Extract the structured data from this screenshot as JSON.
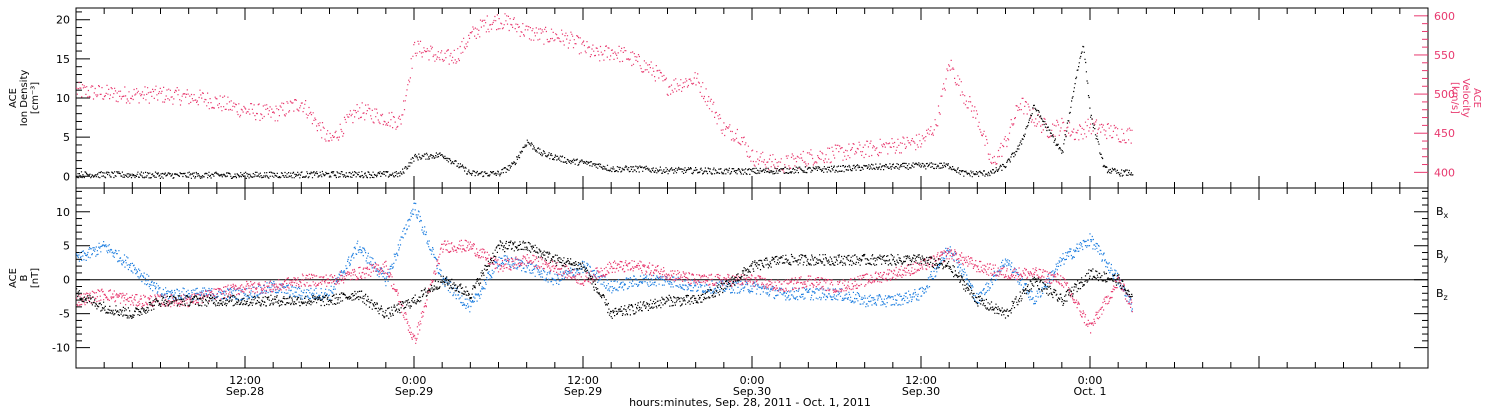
{
  "colors": {
    "black": "#000000",
    "blue": "#1f7fe0",
    "pink": "#e8386e"
  },
  "chart_data": [
    {
      "type": "scatter",
      "panel": "top",
      "ylabel_left": [
        "ACE",
        "Ion Density",
        "[cm⁻³]"
      ],
      "ylabel_right": [
        "ACE",
        "Velocity",
        "[km/s]"
      ],
      "xlim": [
        0,
        96
      ],
      "ylim_left": [
        -1.5,
        21.5
      ],
      "ylim_right": [
        380,
        610
      ],
      "yticks_left": [
        "0",
        "5",
        "10",
        "15",
        "20"
      ],
      "yticks_right": [
        "400",
        "450",
        "500",
        "550",
        "600"
      ],
      "series": [
        {
          "axis": "left",
          "color": "#000000",
          "x": [
            0,
            6,
            12,
            18,
            23,
            24,
            26,
            28,
            30,
            31,
            32,
            33,
            34,
            35,
            36,
            37,
            38,
            40,
            42,
            44,
            46,
            48,
            50,
            52,
            54,
            56,
            58,
            60,
            62,
            63,
            64,
            65,
            66,
            67,
            68,
            69,
            70,
            71,
            71.5,
            72,
            73,
            74,
            75
          ],
          "y": [
            0.3,
            0.2,
            0.2,
            0.3,
            0.3,
            2.5,
            2.8,
            0.4,
            0.4,
            1.5,
            4.5,
            3,
            2.5,
            2,
            1.8,
            1.5,
            1,
            1,
            0.8,
            0.8,
            0.7,
            0.7,
            0.8,
            0.9,
            1,
            1.2,
            1.3,
            1.4,
            1.4,
            0.4,
            0.4,
            0.5,
            1.5,
            4,
            9,
            6,
            3,
            13,
            17,
            8,
            1,
            0.5,
            0.5
          ]
        },
        {
          "axis": "right",
          "color": "#e8386e",
          "x": [
            0,
            3,
            6,
            9,
            12,
            14,
            16,
            18,
            20,
            22,
            23,
            24,
            25,
            26,
            27,
            28,
            29,
            30,
            31,
            32,
            33,
            34,
            35,
            36,
            37,
            38,
            39,
            40,
            41,
            42,
            43,
            44,
            45,
            46,
            47,
            48,
            49,
            50,
            51,
            52,
            54,
            56,
            58,
            60,
            61,
            62,
            63,
            64,
            65,
            66,
            67,
            68,
            69,
            70,
            71,
            72,
            73,
            74,
            75
          ],
          "y": [
            505,
            500,
            500,
            495,
            480,
            475,
            490,
            440,
            480,
            470,
            465,
            560,
            555,
            545,
            550,
            575,
            590,
            595,
            590,
            580,
            575,
            575,
            570,
            560,
            550,
            555,
            550,
            540,
            530,
            510,
            515,
            520,
            490,
            455,
            450,
            420,
            415,
            410,
            415,
            420,
            425,
            430,
            435,
            440,
            460,
            540,
            500,
            470,
            410,
            440,
            490,
            470,
            455,
            460,
            450,
            460,
            455,
            450,
            448
          ]
        }
      ]
    },
    {
      "type": "scatter",
      "panel": "bottom",
      "ylabel_left": [
        "ACE",
        "B",
        "[nT]"
      ],
      "xlim": [
        0,
        96
      ],
      "ylim": [
        -13,
        13.5
      ],
      "yticks": [
        "-10",
        "-5",
        "0",
        "5",
        "10"
      ],
      "xticks": [
        {
          "x": 12,
          "time": "12:00",
          "date": "Sep.28"
        },
        {
          "x": 24,
          "time": "0:00",
          "date": "Sep.29"
        },
        {
          "x": 36,
          "time": "12:00",
          "date": "Sep.29"
        },
        {
          "x": 48,
          "time": "0:00",
          "date": "Sep.30"
        },
        {
          "x": 60,
          "time": "12:00",
          "date": "Sep.30"
        },
        {
          "x": 72,
          "time": "0:00",
          "date": "Oct. 1"
        }
      ],
      "xlabel": "hours:minutes, Sep. 28, 2011 - Oct.  1, 2011",
      "legend": [
        {
          "label": "B",
          "sub": "x",
          "color": "#000000"
        },
        {
          "label": "B",
          "sub": "y",
          "color": "#1f7fe0"
        },
        {
          "label": "B",
          "sub": "z",
          "color": "#e8386e"
        }
      ],
      "series": [
        {
          "name": "Bx",
          "color": "#000000",
          "x": [
            0,
            2,
            4,
            6,
            8,
            10,
            12,
            14,
            16,
            18,
            20,
            22,
            24,
            26,
            28,
            30,
            32,
            34,
            36,
            38,
            40,
            42,
            44,
            46,
            48,
            50,
            52,
            54,
            56,
            58,
            60,
            62,
            64,
            66,
            68,
            70,
            72,
            74,
            75
          ],
          "y": [
            -2,
            -4,
            -5,
            -3,
            -3,
            -3,
            -3,
            -3,
            -3,
            -3,
            -2,
            -5,
            -3,
            0,
            -2,
            5,
            5,
            3,
            2,
            -5,
            -4,
            -3,
            -3,
            -1,
            2,
            3,
            3,
            3,
            3,
            3,
            3,
            2,
            -3,
            -5,
            0,
            -3,
            1,
            0,
            -3
          ]
        },
        {
          "name": "By",
          "color": "#1f7fe0",
          "x": [
            0,
            2,
            4,
            6,
            8,
            10,
            12,
            14,
            16,
            18,
            20,
            22,
            24,
            26,
            28,
            30,
            32,
            34,
            36,
            38,
            40,
            42,
            44,
            46,
            48,
            50,
            52,
            54,
            56,
            58,
            60,
            62,
            64,
            66,
            68,
            70,
            72,
            74,
            75
          ],
          "y": [
            3,
            5,
            2,
            -2,
            -2,
            -2,
            -2,
            -1,
            -2,
            -2,
            5,
            0,
            11,
            0,
            -4,
            3,
            2,
            0,
            2,
            -1,
            0,
            0,
            -1,
            -1,
            -1,
            -2,
            -2,
            -2,
            -3,
            -3,
            -2,
            5,
            -3,
            3,
            -3,
            3,
            6,
            0,
            -4
          ]
        },
        {
          "name": "Bz",
          "color": "#e8386e",
          "x": [
            0,
            2,
            4,
            6,
            8,
            10,
            12,
            14,
            16,
            18,
            20,
            22,
            24,
            26,
            28,
            30,
            32,
            34,
            36,
            38,
            40,
            42,
            44,
            46,
            48,
            50,
            52,
            54,
            56,
            58,
            60,
            62,
            64,
            66,
            68,
            70,
            72,
            74,
            75
          ],
          "y": [
            -3,
            -2,
            -3,
            -3,
            -3,
            -2,
            -1,
            -1,
            0,
            0,
            1,
            2,
            -9,
            5,
            5,
            2,
            3,
            2,
            0,
            2,
            2,
            1,
            0,
            0,
            0,
            -1,
            0,
            -1,
            0,
            1,
            2,
            4,
            2,
            1,
            1,
            0,
            -7,
            0,
            -4
          ]
        }
      ]
    }
  ]
}
